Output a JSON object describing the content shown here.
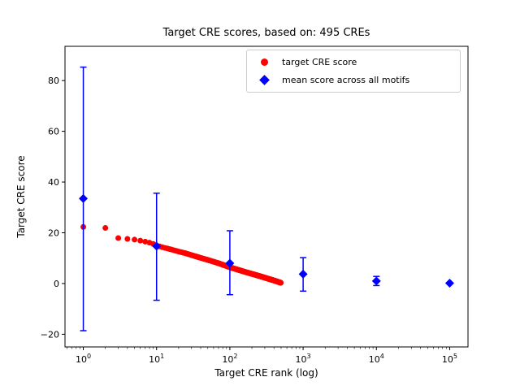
{
  "chart_data": {
    "type": "scatter",
    "title": "Target CRE scores, based on: 495 CREs",
    "xlabel": "Target CRE rank (log)",
    "ylabel": "Target CRE score",
    "x_scale": "log",
    "xlim_log10": [
      -0.25,
      5.25
    ],
    "ylim": [
      -25,
      93.5
    ],
    "xticks_exponents": [
      0,
      1,
      2,
      3,
      4,
      5
    ],
    "yticks": [
      -20,
      0,
      20,
      40,
      60,
      80
    ],
    "ytick_labels": [
      "−20",
      "0",
      "20",
      "40",
      "60",
      "80"
    ],
    "grid": false,
    "legend_position": "upper right inside axes",
    "series": [
      {
        "name": "target CRE score",
        "marker": "circle",
        "color": "#ff0000",
        "n_points": 495,
        "anchor_points": [
          [
            1,
            22.3
          ],
          [
            2,
            21.9
          ],
          [
            3,
            17.9
          ],
          [
            4,
            17.6
          ],
          [
            5,
            17.3
          ],
          [
            6,
            16.9
          ],
          [
            7,
            16.5
          ],
          [
            8,
            16.1
          ],
          [
            9,
            15.6
          ],
          [
            10,
            15.0
          ],
          [
            12,
            14.3
          ],
          [
            15,
            13.6
          ],
          [
            20,
            12.6
          ],
          [
            25,
            11.9
          ],
          [
            30,
            11.2
          ],
          [
            40,
            10.1
          ],
          [
            50,
            9.3
          ],
          [
            70,
            8.0
          ],
          [
            100,
            6.4
          ],
          [
            130,
            5.4
          ],
          [
            160,
            4.6
          ],
          [
            200,
            3.8
          ],
          [
            250,
            3.0
          ],
          [
            300,
            2.3
          ],
          [
            350,
            1.7
          ],
          [
            400,
            1.2
          ],
          [
            450,
            0.7
          ],
          [
            495,
            0.3
          ]
        ]
      },
      {
        "name": "mean score across all motifs",
        "marker": "diamond",
        "color": "#0000ff",
        "points": [
          {
            "x": 1,
            "mean": 33.5,
            "lo": -18.6,
            "hi": 85.3
          },
          {
            "x": 10,
            "mean": 14.7,
            "lo": -6.6,
            "hi": 35.6
          },
          {
            "x": 100,
            "mean": 8.0,
            "lo": -4.4,
            "hi": 20.8
          },
          {
            "x": 1000,
            "mean": 3.7,
            "lo": -3.0,
            "hi": 10.2
          },
          {
            "x": 10000,
            "mean": 1.0,
            "lo": -0.8,
            "hi": 2.8
          },
          {
            "x": 100000,
            "mean": 0.15,
            "lo": -0.1,
            "hi": 0.4
          }
        ]
      }
    ]
  }
}
